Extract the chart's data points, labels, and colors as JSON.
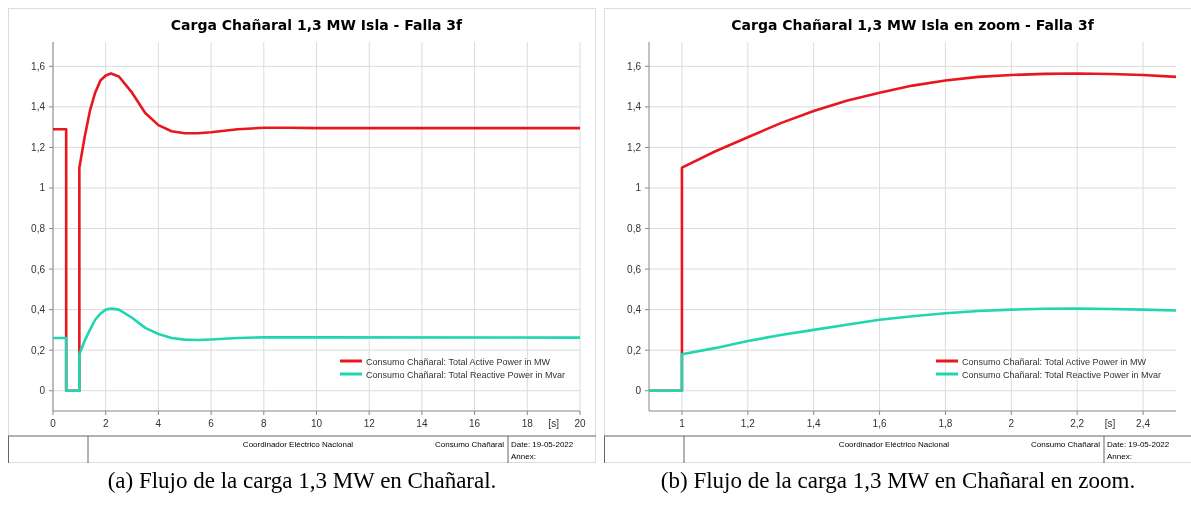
{
  "chart_data": [
    {
      "type": "line",
      "title": "Carga Chañaral 1,3 MW Isla - Falla 3f",
      "xlabel": "[s]",
      "xlim": [
        0,
        20
      ],
      "xticks": [
        0,
        2,
        4,
        6,
        8,
        10,
        12,
        14,
        16,
        18,
        20
      ],
      "ylim": [
        -0.1,
        1.72
      ],
      "yticks": [
        {
          "value": 0,
          "label": "0"
        },
        {
          "value": 0.2,
          "label": "0,2"
        },
        {
          "value": 0.4,
          "label": "0,4"
        },
        {
          "value": 0.6,
          "label": "0,6"
        },
        {
          "value": 0.8,
          "label": "0,8"
        },
        {
          "value": 1,
          "label": "1"
        },
        {
          "value": 1.2,
          "label": "1,2"
        },
        {
          "value": 1.4,
          "label": "1,4"
        },
        {
          "value": 1.6,
          "label": "1,6"
        }
      ],
      "grid": true,
      "legend": "bottom right",
      "line_style": "solid",
      "annotations": [
        "Coordinador Eléctrico Nacional",
        "Consumo Chañaral",
        "Date: 19-05-2022",
        "Annex:",
        "(a) Flujo de la carga 1,3 MW en Chañaral."
      ],
      "series": [
        {
          "name": "Consumo Chañaral: Total Active Power in MW",
          "color": "#e8161e",
          "x": [
            0,
            0.5,
            0.5,
            1,
            1,
            1.2,
            1.4,
            1.6,
            1.8,
            2,
            2.2,
            2.5,
            3,
            3.5,
            4,
            4.5,
            5,
            5.5,
            6,
            7,
            8,
            9,
            10,
            20
          ],
          "values": [
            1.29,
            1.29,
            0,
            0,
            1.1,
            1.25,
            1.38,
            1.47,
            1.53,
            1.555,
            1.565,
            1.55,
            1.47,
            1.37,
            1.31,
            1.28,
            1.27,
            1.27,
            1.275,
            1.29,
            1.297,
            1.297,
            1.295,
            1.295
          ]
        },
        {
          "name": "Consumo Chañaral: Total Reactive Power in Mvar",
          "color": "#1fd6b0",
          "x": [
            0,
            0.5,
            0.5,
            1,
            1,
            1.2,
            1.4,
            1.6,
            1.8,
            2,
            2.2,
            2.5,
            3,
            3.5,
            4,
            4.5,
            5,
            5.5,
            6,
            7,
            8,
            10,
            20
          ],
          "values": [
            0.26,
            0.26,
            0,
            0,
            0.18,
            0.245,
            0.3,
            0.35,
            0.38,
            0.4,
            0.405,
            0.4,
            0.36,
            0.31,
            0.28,
            0.26,
            0.252,
            0.25,
            0.253,
            0.26,
            0.264,
            0.263,
            0.262
          ]
        }
      ]
    },
    {
      "type": "line",
      "title": "Carga Chañaral 1,3 MW Isla en zoom - Falla 3f",
      "xlabel": "[s]",
      "xlim": [
        0.9,
        2.5
      ],
      "xticks": [
        {
          "value": 1,
          "label": "1"
        },
        {
          "value": 1.2,
          "label": "1,2"
        },
        {
          "value": 1.4,
          "label": "1,4"
        },
        {
          "value": 1.6,
          "label": "1,6"
        },
        {
          "value": 1.8,
          "label": "1,8"
        },
        {
          "value": 2,
          "label": "2"
        },
        {
          "value": 2.2,
          "label": "2,2"
        },
        {
          "value": 2.4,
          "label": "2,4"
        }
      ],
      "ylim": [
        -0.1,
        1.72
      ],
      "yticks": [
        {
          "value": 0,
          "label": "0"
        },
        {
          "value": 0.2,
          "label": "0,2"
        },
        {
          "value": 0.4,
          "label": "0,4"
        },
        {
          "value": 0.6,
          "label": "0,6"
        },
        {
          "value": 0.8,
          "label": "0,8"
        },
        {
          "value": 1,
          "label": "1"
        },
        {
          "value": 1.2,
          "label": "1,2"
        },
        {
          "value": 1.4,
          "label": "1,4"
        },
        {
          "value": 1.6,
          "label": "1,6"
        }
      ],
      "grid": true,
      "legend": "bottom right",
      "line_style": "solid",
      "annotations": [
        "Coordinador Eléctrico Nacional",
        "Consumo Chañaral",
        "Date: 19-05-2022",
        "Annex:",
        "(b) Flujo de la carga 1,3 MW en Chañaral en zoom."
      ],
      "series": [
        {
          "name": "Consumo Chañaral: Total Active Power in MW",
          "color": "#e8161e",
          "x": [
            0.9,
            1,
            1,
            1.1,
            1.2,
            1.3,
            1.4,
            1.5,
            1.6,
            1.7,
            1.8,
            1.9,
            2,
            2.1,
            2.2,
            2.3,
            2.4,
            2.5
          ],
          "values": [
            0,
            0,
            1.1,
            1.18,
            1.25,
            1.32,
            1.38,
            1.43,
            1.47,
            1.505,
            1.53,
            1.548,
            1.557,
            1.563,
            1.565,
            1.562,
            1.557,
            1.548
          ]
        },
        {
          "name": "Consumo Chañaral: Total Reactive Power in Mvar",
          "color": "#1fd6b0",
          "x": [
            0.9,
            1,
            1,
            1.1,
            1.2,
            1.3,
            1.4,
            1.5,
            1.6,
            1.7,
            1.8,
            1.9,
            2,
            2.1,
            2.2,
            2.3,
            2.4,
            2.5
          ],
          "values": [
            0,
            0,
            0.18,
            0.21,
            0.245,
            0.275,
            0.3,
            0.325,
            0.35,
            0.367,
            0.382,
            0.393,
            0.4,
            0.404,
            0.405,
            0.403,
            0.4,
            0.396
          ]
        }
      ]
    }
  ]
}
